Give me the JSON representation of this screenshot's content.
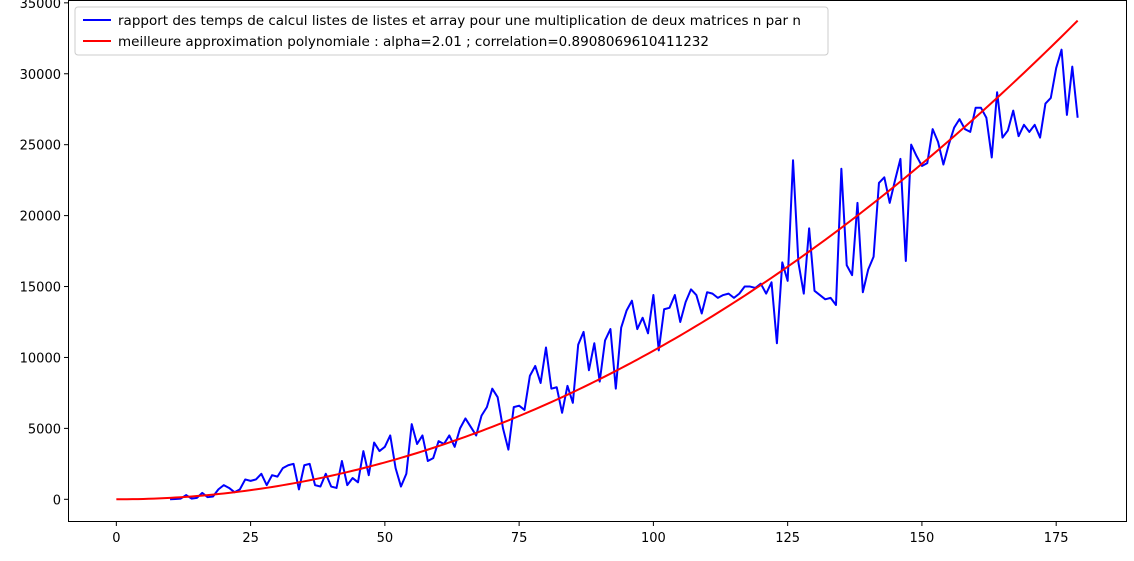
{
  "chart_data": {
    "type": "line",
    "title": "",
    "xlabel": "",
    "ylabel": "",
    "xlim": [
      -9,
      188
    ],
    "ylim": [
      -1600,
      35200
    ],
    "xticks": [
      0,
      25,
      50,
      75,
      100,
      125,
      150,
      175
    ],
    "xtick_labels": [
      "0",
      "25",
      "50",
      "75",
      "100",
      "125",
      "150",
      "175"
    ],
    "yticks": [
      0,
      5000,
      10000,
      15000,
      20000,
      25000,
      30000,
      35000
    ],
    "ytick_labels": [
      "0",
      "5000",
      "10000",
      "15000",
      "20000",
      "25000",
      "30000",
      "35000"
    ],
    "grid": false,
    "legend_position": "top-left",
    "series": [
      {
        "name": "rapport des temps de calcul listes de listes et array pour une multiplication de deux matrices n par n",
        "color": "#0000ff",
        "x_start": 10,
        "x_step": 1,
        "values": [
          0,
          20,
          50,
          300,
          50,
          100,
          450,
          150,
          200,
          700,
          1000,
          800,
          500,
          700,
          1400,
          1300,
          1400,
          1800,
          1000,
          1700,
          1600,
          2200,
          2400,
          2500,
          700,
          2400,
          2500,
          1000,
          900,
          1800,
          900,
          800,
          2700,
          1000,
          1500,
          1200,
          3400,
          1700,
          4000,
          3400,
          3700,
          4500,
          2200,
          900,
          1800,
          5300,
          3900,
          4500,
          2700,
          2900,
          4100,
          3900,
          4500,
          3700,
          5000,
          5700,
          5100,
          4500,
          5900,
          6500,
          7800,
          7200,
          5000,
          3500,
          6500,
          6600,
          6300,
          8700,
          9400,
          8200,
          10700,
          7800,
          7900,
          6100,
          8000,
          6800,
          10900,
          11800,
          9100,
          11000,
          8300,
          11200,
          12000,
          7800,
          12100,
          13300,
          14000,
          12000,
          12800,
          11700,
          14400,
          10500,
          13400,
          13500,
          14400,
          12500,
          13900,
          14800,
          14400,
          13100,
          14600,
          14500,
          14200,
          14400,
          14500,
          14200,
          14500,
          15000,
          15000,
          14900,
          15200,
          14500,
          15300,
          11000,
          16700,
          15400,
          23900,
          16700,
          14500,
          19100,
          14700,
          14400,
          14100,
          14200,
          13700,
          23300,
          16500,
          15800,
          20900,
          14600,
          16200,
          17100,
          22300,
          22700,
          20900,
          22500,
          24000,
          16800,
          25000,
          24200,
          23500,
          23700,
          26100,
          25200,
          23600,
          25000,
          26200,
          26800,
          26100,
          25900,
          27600,
          27600,
          26900,
          24100,
          28700,
          25500,
          26000,
          27400,
          25600,
          26400,
          25900,
          26400,
          25500,
          27900,
          28300,
          30400,
          31700,
          27100,
          30500,
          26900
        ]
      },
      {
        "name": "meilleure approximation polynomiale : alpha=2.01 ; correlation=0.8908069610411232",
        "color": "#ff0000",
        "coefficient": 1.0,
        "exponent": 2.01,
        "x_range": [
          0,
          179
        ]
      }
    ]
  }
}
